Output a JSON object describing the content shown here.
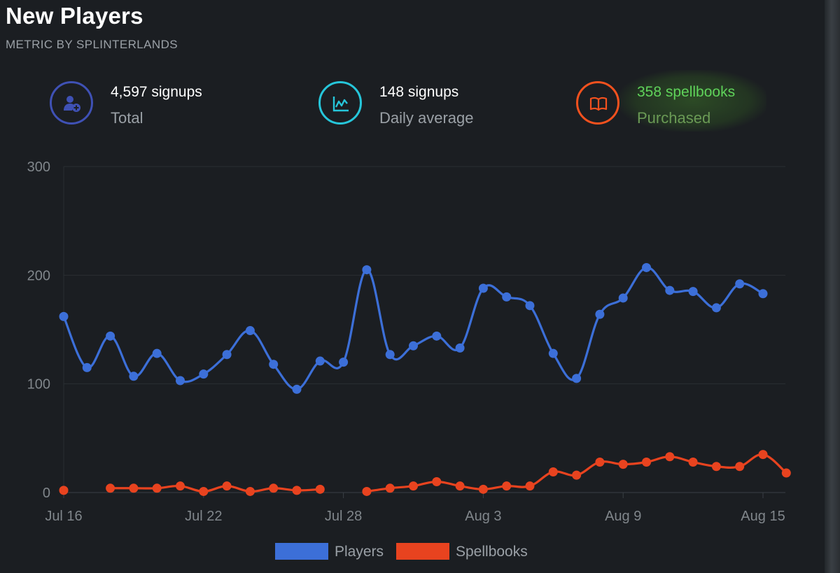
{
  "header": {
    "title": "New Players",
    "subtitle": "METRIC BY SPLINTERLANDS"
  },
  "stats": [
    {
      "value": "4,597 signups",
      "label": "Total",
      "icon": "add-user-icon",
      "color": "#3f51b5"
    },
    {
      "value": "148 signups",
      "label": "Daily average",
      "icon": "line-chart-icon",
      "color": "#26c6da"
    },
    {
      "value": "358 spellbooks",
      "label": "Purchased",
      "icon": "book-icon",
      "color": "#f4511e"
    }
  ],
  "chart_data": {
    "type": "line",
    "x": [
      "Jul 16",
      "Jul 17",
      "Jul 18",
      "Jul 19",
      "Jul 20",
      "Jul 21",
      "Jul 22",
      "Jul 23",
      "Jul 24",
      "Jul 25",
      "Jul 26",
      "Jul 27",
      "Jul 28",
      "Jul 29",
      "Jul 30",
      "Jul 31",
      "Aug 1",
      "Aug 2",
      "Aug 3",
      "Aug 4",
      "Aug 5",
      "Aug 6",
      "Aug 7",
      "Aug 8",
      "Aug 9",
      "Aug 10",
      "Aug 11",
      "Aug 12",
      "Aug 13",
      "Aug 14",
      "Aug 15",
      "Aug 16"
    ],
    "xticks": [
      "Jul 16",
      "Jul 22",
      "Jul 28",
      "Aug 3",
      "Aug 9",
      "Aug 15"
    ],
    "yticks": [
      0,
      100,
      200,
      300
    ],
    "ylim": [
      0,
      300
    ],
    "grid": true,
    "legend_position": "bottom",
    "series": [
      {
        "name": "Players",
        "color": "#3c6fd8",
        "values": [
          162,
          115,
          144,
          107,
          128,
          103,
          109,
          127,
          149,
          118,
          95,
          121,
          120,
          205,
          127,
          135,
          144,
          133,
          188,
          180,
          172,
          128,
          105,
          164,
          179,
          207,
          186,
          185,
          170,
          192,
          183,
          null
        ]
      },
      {
        "name": "Spellbooks",
        "color": "#e8431f",
        "values": [
          2,
          null,
          4,
          4,
          4,
          6,
          1,
          6,
          1,
          4,
          2,
          3,
          null,
          1,
          4,
          6,
          10,
          6,
          3,
          6,
          6,
          19,
          16,
          28,
          26,
          28,
          33,
          28,
          24,
          24,
          35,
          18
        ]
      }
    ]
  }
}
